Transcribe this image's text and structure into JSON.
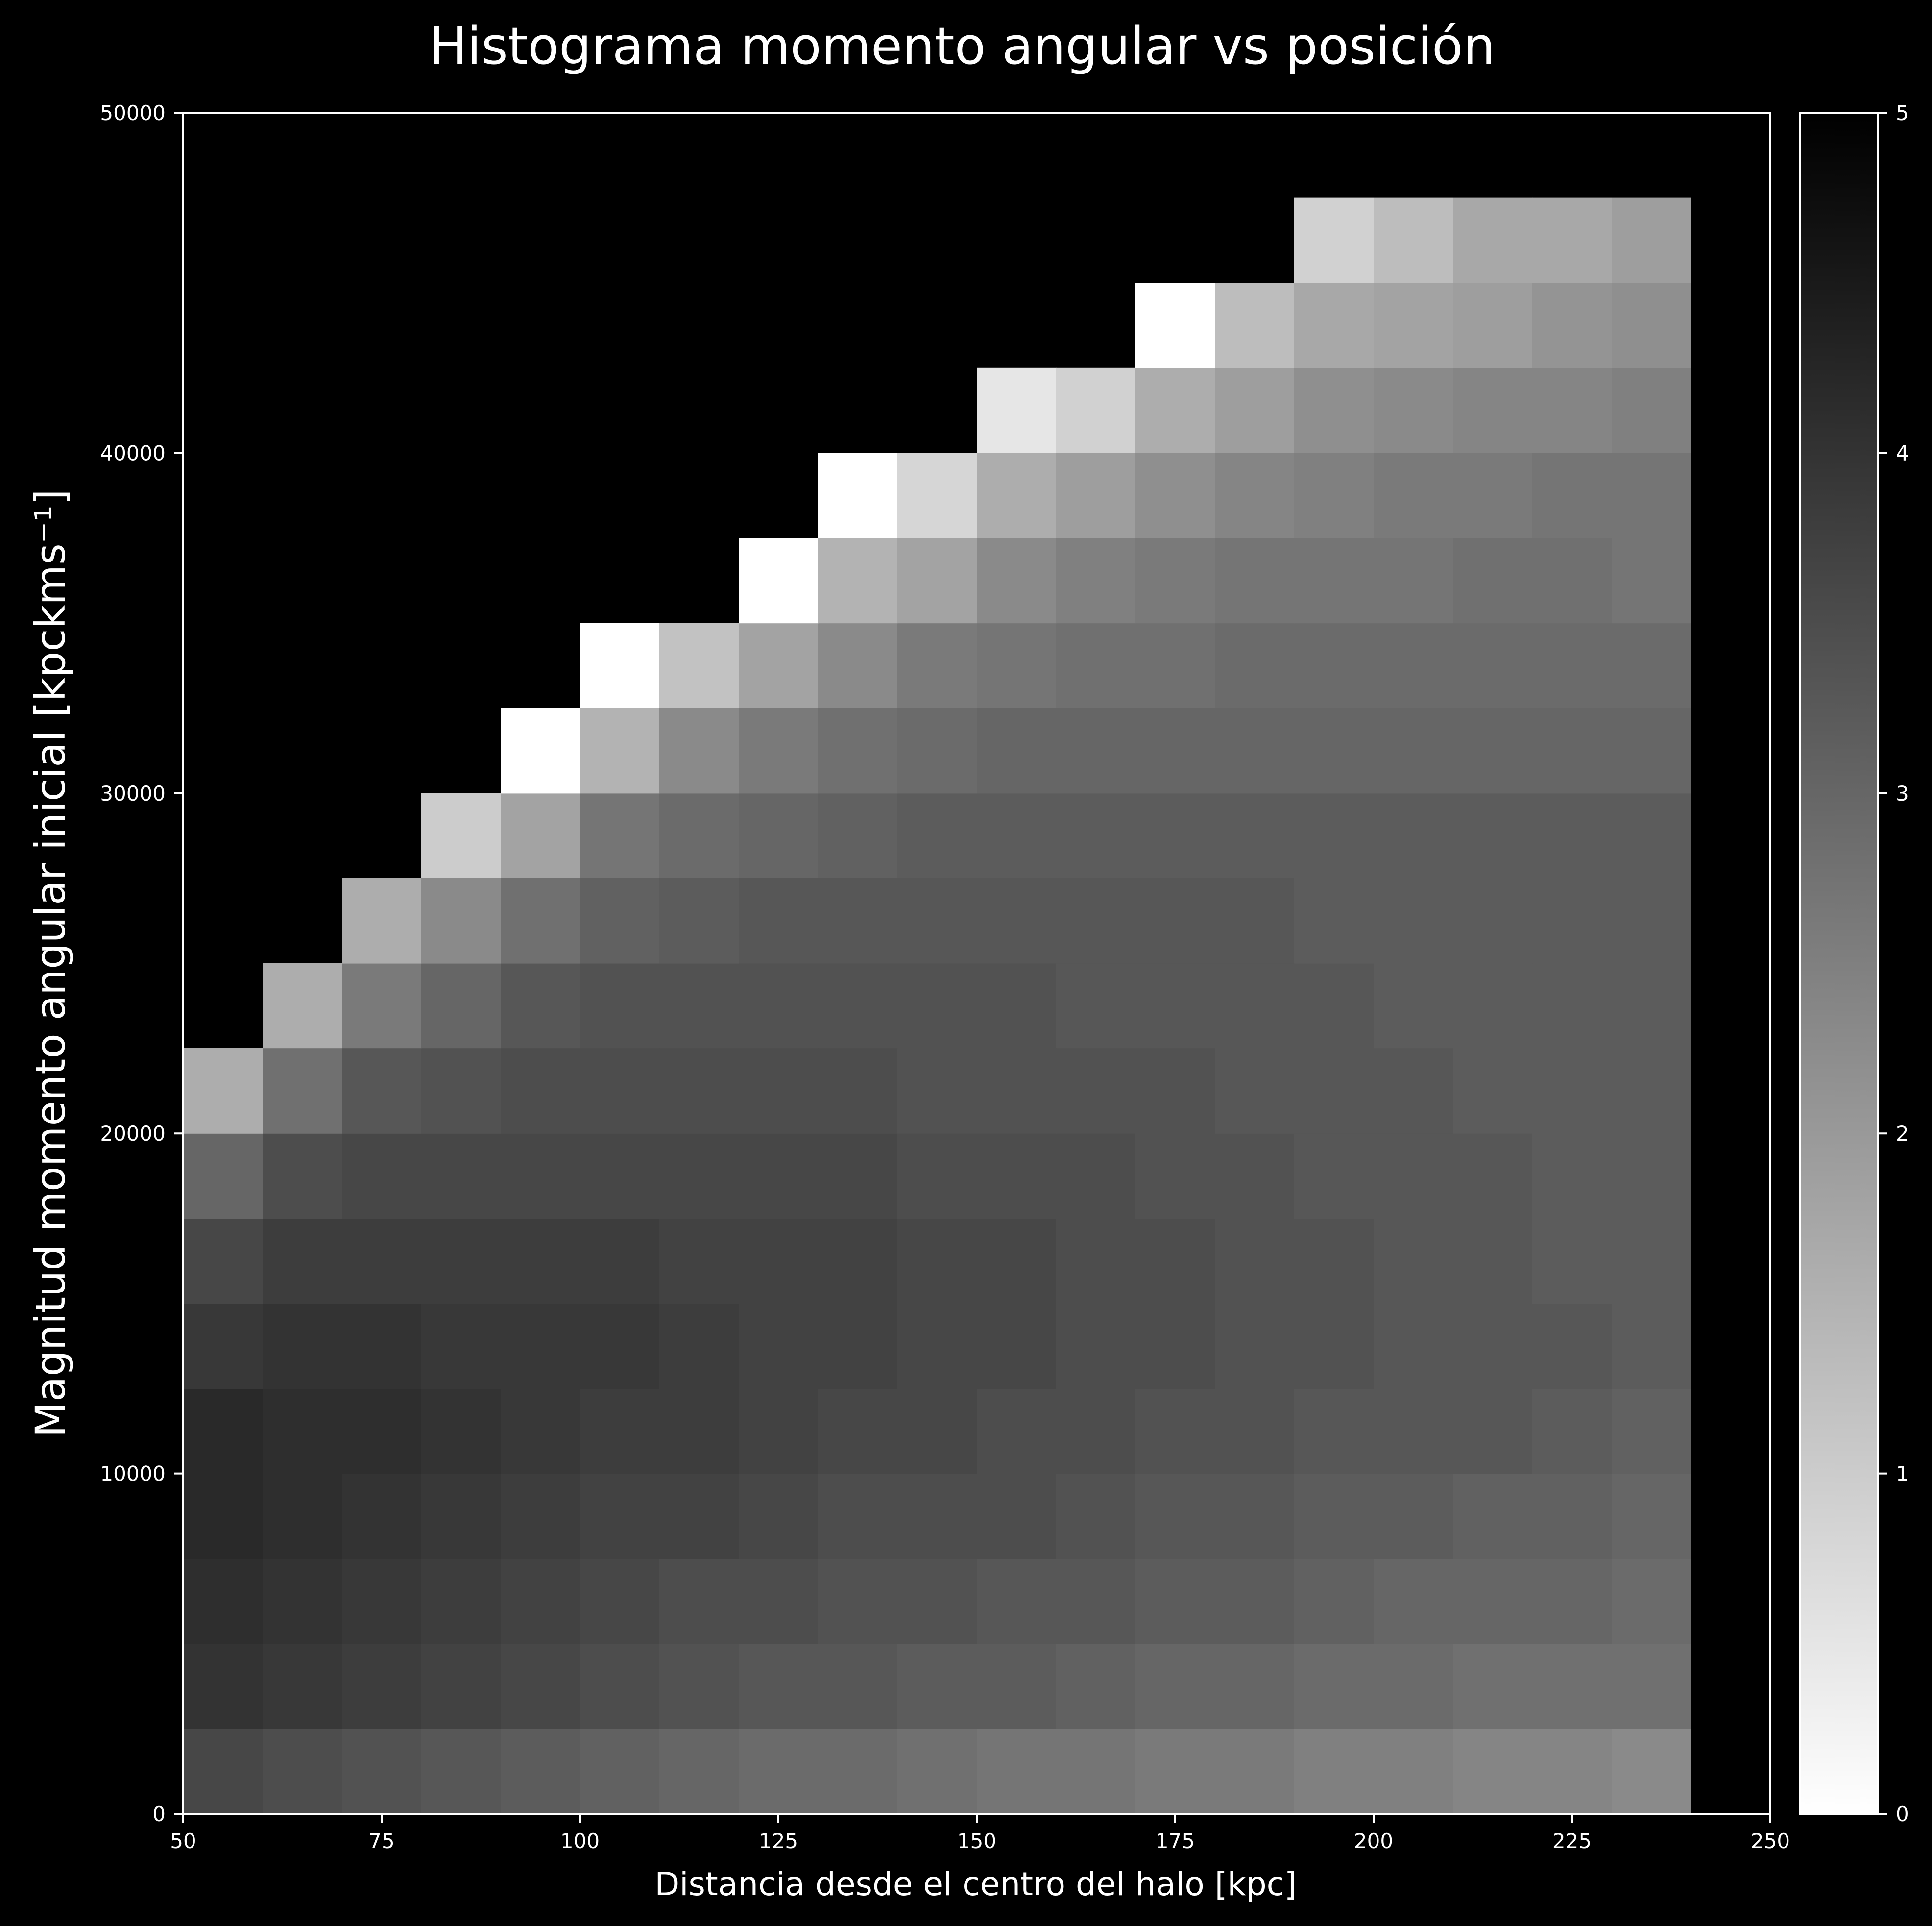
{
  "chart_data": {
    "type": "heatmap",
    "title": "Histograma momento angular vs posición",
    "xlabel": "Distancia desde el centro del halo [kpc]",
    "ylabel": "Magnitud momento angular inicial [kpckms⁻¹]",
    "xlim": [
      50,
      250
    ],
    "ylim": [
      0,
      50000
    ],
    "x_ticks": [
      "50",
      "75",
      "100",
      "125",
      "150",
      "175",
      "200",
      "225",
      "250"
    ],
    "y_ticks": [
      "0",
      "10000",
      "20000",
      "30000",
      "40000",
      "50000"
    ],
    "colorbar": {
      "range": [
        0,
        5
      ],
      "ticks": [
        "0",
        "1",
        "2",
        "3",
        "4",
        "5"
      ],
      "colormap": "reversed grayscale (0 white, 5 black)"
    },
    "x_bin_edges": [
      50,
      60,
      70,
      80,
      90,
      100,
      110,
      120,
      130,
      140,
      150,
      160,
      170,
      180,
      190,
      200,
      210,
      220,
      230,
      240
    ],
    "y_bin_edges": [
      0,
      2500,
      5000,
      7500,
      10000,
      12500,
      15000,
      17500,
      20000,
      22500,
      25000,
      27500,
      30000,
      32500,
      35000,
      37500,
      40000,
      42500,
      45000,
      47500
    ],
    "values_description": "rows from bottom (y=0) to top; log-scale counts; null = empty bin",
    "values": [
      [
        3.6,
        3.5,
        3.4,
        3.3,
        3.2,
        3.1,
        3.0,
        2.9,
        2.9,
        2.8,
        2.7,
        2.7,
        2.6,
        2.6,
        2.5,
        2.5,
        2.4,
        2.4,
        2.3
      ],
      [
        4.0,
        3.9,
        3.8,
        3.7,
        3.6,
        3.5,
        3.4,
        3.3,
        3.3,
        3.2,
        3.2,
        3.1,
        3.0,
        3.0,
        2.9,
        2.9,
        2.8,
        2.8,
        2.8
      ],
      [
        4.1,
        4.0,
        3.9,
        3.8,
        3.7,
        3.6,
        3.5,
        3.5,
        3.4,
        3.4,
        3.3,
        3.3,
        3.2,
        3.2,
        3.1,
        3.0,
        3.0,
        3.0,
        2.9
      ],
      [
        4.2,
        4.1,
        4.0,
        3.9,
        3.8,
        3.7,
        3.7,
        3.6,
        3.5,
        3.5,
        3.5,
        3.4,
        3.3,
        3.3,
        3.2,
        3.2,
        3.1,
        3.1,
        3.0
      ],
      [
        4.2,
        4.1,
        4.1,
        4.0,
        3.9,
        3.8,
        3.8,
        3.7,
        3.6,
        3.6,
        3.5,
        3.5,
        3.4,
        3.4,
        3.3,
        3.3,
        3.3,
        3.2,
        3.1
      ],
      [
        3.9,
        4.0,
        4.0,
        3.9,
        3.9,
        3.9,
        3.8,
        3.7,
        3.7,
        3.6,
        3.6,
        3.5,
        3.5,
        3.4,
        3.4,
        3.3,
        3.3,
        3.3,
        3.2
      ],
      [
        3.6,
        3.8,
        3.8,
        3.8,
        3.8,
        3.8,
        3.7,
        3.7,
        3.7,
        3.6,
        3.6,
        3.5,
        3.5,
        3.4,
        3.4,
        3.3,
        3.3,
        3.2,
        3.2
      ],
      [
        3.0,
        3.5,
        3.6,
        3.6,
        3.6,
        3.6,
        3.6,
        3.6,
        3.6,
        3.5,
        3.5,
        3.5,
        3.4,
        3.4,
        3.3,
        3.3,
        3.3,
        3.2,
        3.2
      ],
      [
        1.6,
        2.8,
        3.3,
        3.4,
        3.5,
        3.5,
        3.5,
        3.5,
        3.5,
        3.4,
        3.4,
        3.4,
        3.4,
        3.3,
        3.3,
        3.3,
        3.2,
        3.2,
        3.2
      ],
      [
        null,
        1.6,
        2.6,
        3.0,
        3.3,
        3.4,
        3.4,
        3.4,
        3.4,
        3.4,
        3.4,
        3.3,
        3.3,
        3.3,
        3.3,
        3.2,
        3.2,
        3.2,
        3.2
      ],
      [
        null,
        null,
        1.6,
        2.3,
        2.8,
        3.1,
        3.2,
        3.3,
        3.3,
        3.3,
        3.3,
        3.3,
        3.3,
        3.3,
        3.2,
        3.2,
        3.2,
        3.2,
        3.2
      ],
      [
        null,
        null,
        null,
        1.0,
        1.8,
        2.7,
        2.9,
        3.0,
        3.1,
        3.2,
        3.2,
        3.2,
        3.2,
        3.2,
        3.2,
        3.2,
        3.2,
        3.2,
        3.2
      ],
      [
        null,
        null,
        null,
        null,
        0.0,
        1.5,
        2.3,
        2.6,
        2.8,
        2.9,
        3.0,
        3.0,
        3.0,
        3.0,
        3.0,
        3.0,
        3.0,
        3.0,
        3.0
      ],
      [
        null,
        null,
        null,
        null,
        null,
        0.0,
        1.2,
        1.8,
        2.3,
        2.6,
        2.7,
        2.8,
        2.8,
        2.9,
        2.9,
        2.9,
        2.9,
        2.9,
        2.9
      ],
      [
        null,
        null,
        null,
        null,
        null,
        null,
        null,
        0.0,
        1.5,
        1.8,
        2.3,
        2.5,
        2.6,
        2.7,
        2.7,
        2.7,
        2.8,
        2.8,
        2.7
      ],
      [
        null,
        null,
        null,
        null,
        null,
        null,
        null,
        null,
        0.0,
        0.8,
        1.6,
        1.9,
        2.2,
        2.4,
        2.5,
        2.6,
        2.6,
        2.7,
        2.7
      ],
      [
        null,
        null,
        null,
        null,
        null,
        null,
        null,
        null,
        null,
        null,
        0.5,
        0.9,
        1.6,
        1.9,
        2.2,
        2.3,
        2.4,
        2.4,
        2.5
      ],
      [
        null,
        null,
        null,
        null,
        null,
        null,
        null,
        null,
        null,
        null,
        null,
        null,
        0.0,
        1.3,
        1.7,
        1.8,
        1.9,
        2.1,
        2.2
      ],
      [
        null,
        null,
        null,
        null,
        null,
        null,
        null,
        null,
        null,
        null,
        null,
        null,
        null,
        null,
        0.9,
        1.3,
        1.7,
        1.7,
        1.9
      ]
    ]
  }
}
